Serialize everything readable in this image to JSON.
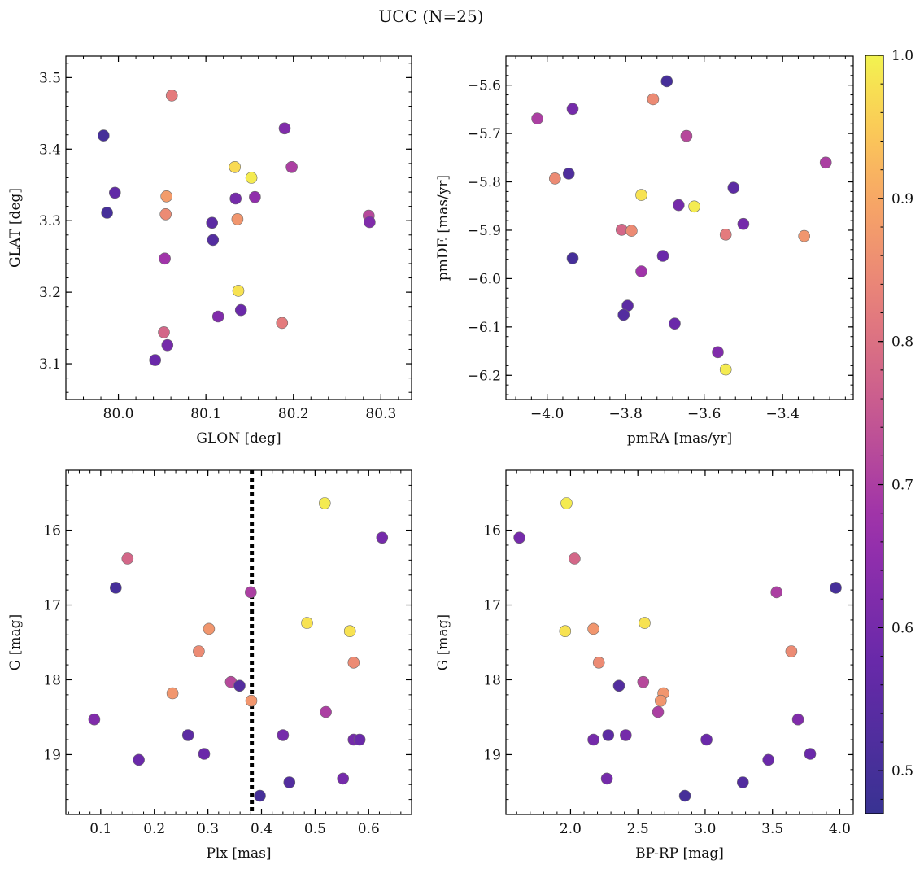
{
  "title": "UCC (N=25)",
  "colorbar": {
    "min": 0.47,
    "max": 1.0,
    "ticks": [
      0.5,
      0.6,
      0.7,
      0.8,
      0.9,
      1.0
    ],
    "tick_labels": [
      "0.5",
      "0.6",
      "0.7",
      "0.8",
      "0.9",
      "1.0"
    ],
    "colormap": "plasma (truncated)"
  },
  "chart_data": [
    {
      "type": "scatter",
      "xlabel": "GLON [deg]",
      "ylabel": "GLAT [deg]",
      "xlim": [
        79.94,
        80.335
      ],
      "ylim": [
        3.05,
        3.53
      ],
      "xticks": [
        80.0,
        80.1,
        80.2,
        80.3
      ],
      "xtick_labels": [
        "80.0",
        "80.1",
        "80.2",
        "80.3"
      ],
      "yticks": [
        3.1,
        3.2,
        3.3,
        3.4,
        3.5
      ],
      "ytick_labels": [
        "3.1",
        "3.2",
        "3.3",
        "3.4",
        "3.5"
      ],
      "points": [
        {
          "x": 79.983,
          "y": 3.419,
          "c": 0.5
        },
        {
          "x": 79.987,
          "y": 3.311,
          "c": 0.5
        },
        {
          "x": 79.996,
          "y": 3.339,
          "c": 0.56
        },
        {
          "x": 80.061,
          "y": 3.475,
          "c": 0.82
        },
        {
          "x": 80.055,
          "y": 3.334,
          "c": 0.88
        },
        {
          "x": 80.054,
          "y": 3.309,
          "c": 0.85
        },
        {
          "x": 80.053,
          "y": 3.247,
          "c": 0.68
        },
        {
          "x": 80.052,
          "y": 3.144,
          "c": 0.78
        },
        {
          "x": 80.056,
          "y": 3.126,
          "c": 0.6
        },
        {
          "x": 80.042,
          "y": 3.105,
          "c": 0.58
        },
        {
          "x": 80.107,
          "y": 3.297,
          "c": 0.55
        },
        {
          "x": 80.108,
          "y": 3.273,
          "c": 0.53
        },
        {
          "x": 80.114,
          "y": 3.166,
          "c": 0.62
        },
        {
          "x": 80.133,
          "y": 3.375,
          "c": 0.97
        },
        {
          "x": 80.134,
          "y": 3.331,
          "c": 0.6
        },
        {
          "x": 80.136,
          "y": 3.302,
          "c": 0.87
        },
        {
          "x": 80.137,
          "y": 3.202,
          "c": 0.98
        },
        {
          "x": 80.14,
          "y": 3.175,
          "c": 0.58
        },
        {
          "x": 80.152,
          "y": 3.36,
          "c": 0.99
        },
        {
          "x": 80.156,
          "y": 3.333,
          "c": 0.65
        },
        {
          "x": 80.19,
          "y": 3.429,
          "c": 0.62
        },
        {
          "x": 80.198,
          "y": 3.375,
          "c": 0.7
        },
        {
          "x": 80.187,
          "y": 3.157,
          "c": 0.82
        },
        {
          "x": 80.286,
          "y": 3.307,
          "c": 0.72
        },
        {
          "x": 80.287,
          "y": 3.298,
          "c": 0.62
        }
      ]
    },
    {
      "type": "scatter",
      "xlabel": "pmRA [mas/yr]",
      "ylabel": "pmDE [mas/yr]",
      "xlim": [
        -4.105,
        -3.22
      ],
      "ylim": [
        -6.25,
        -5.54
      ],
      "xticks": [
        -4.0,
        -3.8,
        -3.6,
        -3.4
      ],
      "xtick_labels": [
        "−4.0",
        "−3.8",
        "−3.6",
        "−3.4"
      ],
      "yticks": [
        -5.6,
        -5.7,
        -5.8,
        -5.9,
        -6.0,
        -6.1,
        -6.2
      ],
      "ytick_labels": [
        "−5.6",
        "−5.7",
        "−5.8",
        "−5.9",
        "−6.0",
        "−6.1",
        "−6.2"
      ],
      "points": [
        {
          "x": -3.695,
          "y": -5.592,
          "c": 0.5
        },
        {
          "x": -3.73,
          "y": -5.629,
          "c": 0.85
        },
        {
          "x": -3.935,
          "y": -5.649,
          "c": 0.6
        },
        {
          "x": -4.025,
          "y": -5.669,
          "c": 0.7
        },
        {
          "x": -3.645,
          "y": -5.705,
          "c": 0.72
        },
        {
          "x": -3.29,
          "y": -5.76,
          "c": 0.7
        },
        {
          "x": -3.945,
          "y": -5.783,
          "c": 0.52
        },
        {
          "x": -3.98,
          "y": -5.793,
          "c": 0.85
        },
        {
          "x": -3.525,
          "y": -5.812,
          "c": 0.55
        },
        {
          "x": -3.76,
          "y": -5.827,
          "c": 0.98
        },
        {
          "x": -3.665,
          "y": -5.848,
          "c": 0.6
        },
        {
          "x": -3.625,
          "y": -5.851,
          "c": 0.99
        },
        {
          "x": -3.5,
          "y": -5.887,
          "c": 0.6
        },
        {
          "x": -3.81,
          "y": -5.899,
          "c": 0.78
        },
        {
          "x": -3.785,
          "y": -5.901,
          "c": 0.85
        },
        {
          "x": -3.545,
          "y": -5.909,
          "c": 0.82
        },
        {
          "x": -3.345,
          "y": -5.912,
          "c": 0.87
        },
        {
          "x": -3.705,
          "y": -5.953,
          "c": 0.58
        },
        {
          "x": -3.935,
          "y": -5.958,
          "c": 0.5
        },
        {
          "x": -3.76,
          "y": -5.985,
          "c": 0.68
        },
        {
          "x": -3.795,
          "y": -6.056,
          "c": 0.55
        },
        {
          "x": -3.805,
          "y": -6.075,
          "c": 0.53
        },
        {
          "x": -3.675,
          "y": -6.093,
          "c": 0.58
        },
        {
          "x": -3.565,
          "y": -6.152,
          "c": 0.62
        },
        {
          "x": -3.545,
          "y": -6.188,
          "c": 0.99
        }
      ]
    },
    {
      "type": "scatter",
      "xlabel": "Plx [mas]",
      "ylabel": "G [mag]",
      "xlim": [
        0.035,
        0.68
      ],
      "ylim": [
        19.8,
        15.2
      ],
      "y_inverted": true,
      "vline": {
        "x": 0.382,
        "style": "dotted",
        "color": "#000000"
      },
      "xticks": [
        0.1,
        0.2,
        0.3,
        0.4,
        0.5,
        0.6
      ],
      "xtick_labels": [
        "0.1",
        "0.2",
        "0.3",
        "0.4",
        "0.5",
        "0.6"
      ],
      "yticks": [
        16,
        17,
        18,
        19
      ],
      "ytick_labels": [
        "16",
        "17",
        "18",
        "19"
      ],
      "points": [
        {
          "x": 0.518,
          "y": 15.64,
          "c": 0.99
        },
        {
          "x": 0.625,
          "y": 16.1,
          "c": 0.6
        },
        {
          "x": 0.15,
          "y": 16.38,
          "c": 0.78
        },
        {
          "x": 0.128,
          "y": 16.77,
          "c": 0.5
        },
        {
          "x": 0.38,
          "y": 16.83,
          "c": 0.7
        },
        {
          "x": 0.485,
          "y": 17.24,
          "c": 0.98
        },
        {
          "x": 0.302,
          "y": 17.32,
          "c": 0.87
        },
        {
          "x": 0.565,
          "y": 17.35,
          "c": 0.98
        },
        {
          "x": 0.283,
          "y": 17.62,
          "c": 0.85
        },
        {
          "x": 0.572,
          "y": 17.77,
          "c": 0.85
        },
        {
          "x": 0.343,
          "y": 18.03,
          "c": 0.72
        },
        {
          "x": 0.359,
          "y": 18.08,
          "c": 0.53
        },
        {
          "x": 0.234,
          "y": 18.18,
          "c": 0.87
        },
        {
          "x": 0.381,
          "y": 18.28,
          "c": 0.87
        },
        {
          "x": 0.52,
          "y": 18.43,
          "c": 0.7
        },
        {
          "x": 0.088,
          "y": 18.53,
          "c": 0.62
        },
        {
          "x": 0.263,
          "y": 18.74,
          "c": 0.55
        },
        {
          "x": 0.44,
          "y": 18.74,
          "c": 0.6
        },
        {
          "x": 0.572,
          "y": 18.8,
          "c": 0.6
        },
        {
          "x": 0.583,
          "y": 18.8,
          "c": 0.58
        },
        {
          "x": 0.293,
          "y": 18.99,
          "c": 0.58
        },
        {
          "x": 0.171,
          "y": 19.07,
          "c": 0.58
        },
        {
          "x": 0.552,
          "y": 19.32,
          "c": 0.6
        },
        {
          "x": 0.452,
          "y": 19.37,
          "c": 0.53
        },
        {
          "x": 0.397,
          "y": 19.55,
          "c": 0.5
        }
      ]
    },
    {
      "type": "scatter",
      "xlabel": "BP-RP [mag]",
      "ylabel": "G [mag]",
      "xlim": [
        1.52,
        4.1
      ],
      "ylim": [
        19.8,
        15.2
      ],
      "y_inverted": true,
      "xticks": [
        2.0,
        2.5,
        3.0,
        3.5,
        4.0
      ],
      "xtick_labels": [
        "2.0",
        "2.5",
        "3.0",
        "3.5",
        "4.0"
      ],
      "yticks": [
        16,
        17,
        18,
        19
      ],
      "ytick_labels": [
        "16",
        "17",
        "18",
        "19"
      ],
      "points": [
        {
          "x": 1.97,
          "y": 15.64,
          "c": 0.99
        },
        {
          "x": 1.62,
          "y": 16.1,
          "c": 0.6
        },
        {
          "x": 2.03,
          "y": 16.38,
          "c": 0.78
        },
        {
          "x": 3.97,
          "y": 16.77,
          "c": 0.5
        },
        {
          "x": 3.53,
          "y": 16.83,
          "c": 0.7
        },
        {
          "x": 2.55,
          "y": 17.24,
          "c": 0.98
        },
        {
          "x": 2.17,
          "y": 17.32,
          "c": 0.87
        },
        {
          "x": 1.96,
          "y": 17.35,
          "c": 0.98
        },
        {
          "x": 3.64,
          "y": 17.62,
          "c": 0.85
        },
        {
          "x": 2.21,
          "y": 17.77,
          "c": 0.85
        },
        {
          "x": 2.54,
          "y": 18.03,
          "c": 0.72
        },
        {
          "x": 2.36,
          "y": 18.08,
          "c": 0.53
        },
        {
          "x": 2.69,
          "y": 18.18,
          "c": 0.87
        },
        {
          "x": 2.67,
          "y": 18.28,
          "c": 0.87
        },
        {
          "x": 2.65,
          "y": 18.43,
          "c": 0.7
        },
        {
          "x": 3.69,
          "y": 18.53,
          "c": 0.62
        },
        {
          "x": 2.28,
          "y": 18.74,
          "c": 0.55
        },
        {
          "x": 2.41,
          "y": 18.74,
          "c": 0.6
        },
        {
          "x": 2.17,
          "y": 18.8,
          "c": 0.6
        },
        {
          "x": 3.01,
          "y": 18.8,
          "c": 0.58
        },
        {
          "x": 3.78,
          "y": 18.99,
          "c": 0.58
        },
        {
          "x": 3.47,
          "y": 19.07,
          "c": 0.58
        },
        {
          "x": 2.27,
          "y": 19.32,
          "c": 0.6
        },
        {
          "x": 3.28,
          "y": 19.37,
          "c": 0.53
        },
        {
          "x": 2.85,
          "y": 19.55,
          "c": 0.5
        }
      ]
    }
  ]
}
